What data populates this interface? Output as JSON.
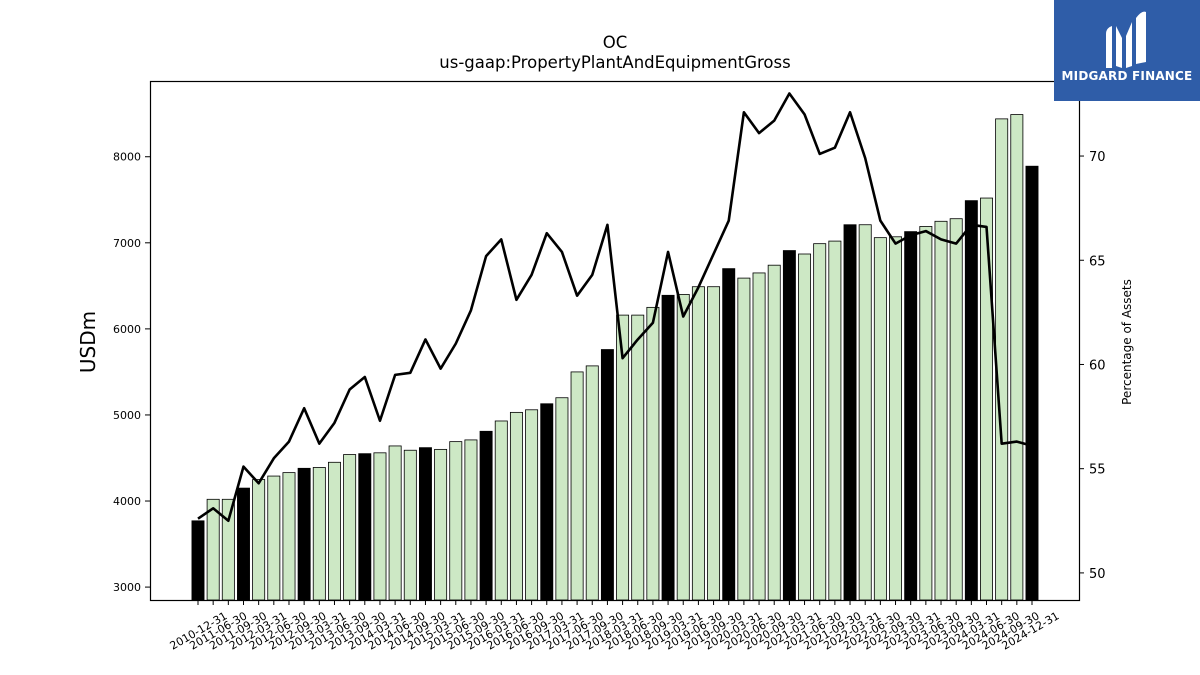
{
  "brand": {
    "name": "MIDGARD FINANCE",
    "bg_color": "#2f5da8"
  },
  "chart_data": {
    "type": "bar",
    "title": "OC",
    "subtitle": "us-gaap:PropertyPlantAndEquipmentGross",
    "ylabel": "USDm",
    "y2label": "Percentage of Assets",
    "ylim": [
      2850,
      8880
    ],
    "y2lim": [
      48.7,
      73.6
    ],
    "yticks": [
      3000,
      4000,
      5000,
      6000,
      7000,
      8000
    ],
    "y2ticks": [
      50,
      55,
      60,
      65,
      70
    ],
    "colors": {
      "annual_bar": "#000000",
      "quarter_bar": "#cde8c5",
      "line": "#000000"
    },
    "categories": [
      "2010-12-31",
      "2011-03-31",
      "2011-06-30",
      "2011-09-30",
      "2011-12-31",
      "2012-03-31",
      "2012-06-30",
      "2012-09-30",
      "2012-12-31",
      "2013-03-31",
      "2013-06-30",
      "2013-09-30",
      "2013-12-31",
      "2014-03-31",
      "2014-06-30",
      "2014-09-30",
      "2014-12-31",
      "2015-03-31",
      "2015-06-30",
      "2015-09-30",
      "2015-12-31",
      "2016-03-31",
      "2016-06-30",
      "2016-09-30",
      "2016-12-31",
      "2017-03-31",
      "2017-06-30",
      "2017-09-30",
      "2017-12-31",
      "2018-03-31",
      "2018-06-30",
      "2018-09-30",
      "2018-12-31",
      "2019-03-31",
      "2019-06-30",
      "2019-09-30",
      "2019-12-31",
      "2020-03-31",
      "2020-06-30",
      "2020-09-30",
      "2020-12-31",
      "2021-03-31",
      "2021-06-30",
      "2021-09-30",
      "2021-12-31",
      "2022-03-31",
      "2022-06-30",
      "2022-09-30",
      "2022-12-31",
      "2023-03-31",
      "2023-06-30",
      "2023-09-30",
      "2023-12-31",
      "2024-03-31",
      "2024-06-30",
      "2024-12-31"
    ],
    "xtick_labels": [
      "2010-12-31",
      "2011-06-30",
      "2011-09-30",
      "2012-03-31",
      "2012-06-30",
      "2012-09-30",
      "2013-03-31",
      "2013-06-30",
      "2013-09-30",
      "2014-03-31",
      "2014-06-30",
      "2014-09-30",
      "2015-03-31",
      "2015-06-30",
      "2015-09-30",
      "2016-03-31",
      "2016-06-30",
      "2016-09-30",
      "2017-03-31",
      "2017-06-30",
      "2017-09-30",
      "2018-03-31",
      "2018-06-30",
      "2018-09-30",
      "2019-03-31",
      "2019-06-30",
      "2019-09-30",
      "2020-03-31",
      "2020-06-30",
      "2020-09-30",
      "2021-03-31",
      "2021-06-30",
      "2021-09-30",
      "2022-03-31",
      "2022-06-30",
      "2022-09-30",
      "2023-03-31",
      "2023-06-30",
      "2023-09-30",
      "2024-03-31",
      "2024-06-30",
      "2024-09-30",
      "2024-12-31"
    ],
    "series": [
      {
        "name": "PropertyPlantAndEquipmentGross",
        "axis": "left",
        "values": [
          3770,
          4020,
          4020,
          4150,
          4250,
          4290,
          4330,
          4380,
          4390,
          4450,
          4540,
          4550,
          4560,
          4640,
          4590,
          4620,
          4600,
          4690,
          4710,
          4810,
          4930,
          5030,
          5060,
          5130,
          5200,
          5500,
          5570,
          5760,
          6160,
          6160,
          6250,
          6390,
          6400,
          6490,
          6490,
          6700,
          6590,
          6650,
          6740,
          6910,
          6870,
          6990,
          7020,
          7210,
          7210,
          7060,
          7070,
          7130,
          7190,
          7250,
          7280,
          7490,
          7520,
          8440,
          8490,
          7890
        ],
        "annual": [
          true,
          false,
          false,
          true,
          false,
          false,
          false,
          true,
          false,
          false,
          false,
          true,
          false,
          false,
          false,
          true,
          false,
          false,
          false,
          true,
          false,
          false,
          false,
          true,
          false,
          false,
          false,
          true,
          false,
          false,
          false,
          true,
          false,
          false,
          false,
          true,
          false,
          false,
          false,
          true,
          false,
          false,
          false,
          true,
          false,
          false,
          false,
          true,
          false,
          false,
          false,
          true,
          false,
          false,
          false,
          true
        ]
      },
      {
        "name": "Percentage of Assets",
        "axis": "right",
        "type": "line",
        "values": [
          52.6,
          53.1,
          52.5,
          55.1,
          54.3,
          55.5,
          56.3,
          57.9,
          56.2,
          57.2,
          58.8,
          59.4,
          57.3,
          59.5,
          59.6,
          61.2,
          59.8,
          61.0,
          62.6,
          65.2,
          66.0,
          63.1,
          64.3,
          66.3,
          65.4,
          63.3,
          64.3,
          66.7,
          60.3,
          61.2,
          62.0,
          65.4,
          62.3,
          63.7,
          65.3,
          66.9,
          72.1,
          71.1,
          71.7,
          73.0,
          72.0,
          70.1,
          70.4,
          72.1,
          69.9,
          66.9,
          65.8,
          66.2,
          66.4,
          66.0,
          65.8,
          66.7,
          66.6,
          56.2,
          56.3,
          56.1
        ]
      }
    ]
  }
}
